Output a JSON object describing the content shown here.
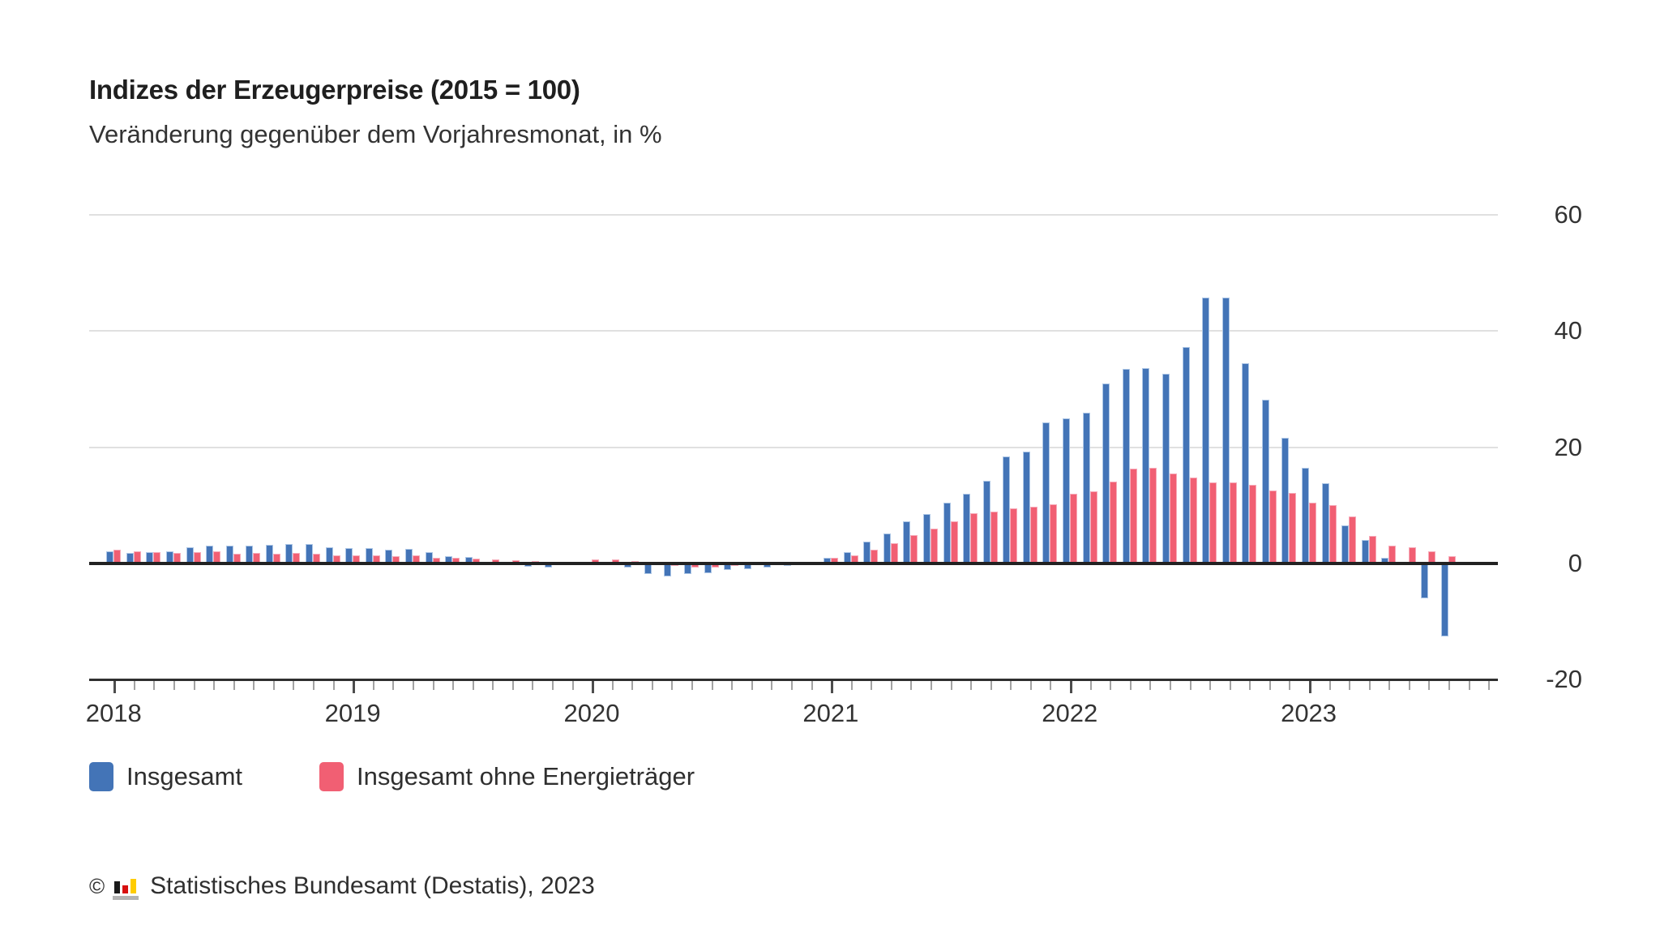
{
  "header": {
    "title": "Indizes der Erzeugerpreise (2015 = 100)",
    "subtitle": "Veränderung gegenüber dem Vorjahresmonat, in %"
  },
  "chart_data": {
    "type": "bar",
    "title": "Indizes der Erzeugerpreise (2015 = 100)",
    "subtitle": "Veränderung gegenüber dem Vorjahresmonat, in %",
    "unit": "%",
    "ylim": [
      -20,
      60
    ],
    "yticks": [
      60,
      40,
      20,
      0,
      -20
    ],
    "grid": "horizontal",
    "legend_position": "bottom",
    "x_start": "2018-01",
    "x_end": "2023-08",
    "categories": [
      "2018-01",
      "2018-02",
      "2018-03",
      "2018-04",
      "2018-05",
      "2018-06",
      "2018-07",
      "2018-08",
      "2018-09",
      "2018-10",
      "2018-11",
      "2018-12",
      "2019-01",
      "2019-02",
      "2019-03",
      "2019-04",
      "2019-05",
      "2019-06",
      "2019-07",
      "2019-08",
      "2019-09",
      "2019-10",
      "2019-11",
      "2019-12",
      "2020-01",
      "2020-02",
      "2020-03",
      "2020-04",
      "2020-05",
      "2020-06",
      "2020-07",
      "2020-08",
      "2020-09",
      "2020-10",
      "2020-11",
      "2020-12",
      "2021-01",
      "2021-02",
      "2021-03",
      "2021-04",
      "2021-05",
      "2021-06",
      "2021-07",
      "2021-08",
      "2021-09",
      "2021-10",
      "2021-11",
      "2021-12",
      "2022-01",
      "2022-02",
      "2022-03",
      "2022-04",
      "2022-05",
      "2022-06",
      "2022-07",
      "2022-08",
      "2022-09",
      "2022-10",
      "2022-11",
      "2022-12",
      "2023-01",
      "2023-02",
      "2023-03",
      "2023-04",
      "2023-05",
      "2023-06",
      "2023-07",
      "2023-08"
    ],
    "year_tick_labels": [
      "2018",
      "2019",
      "2020",
      "2021",
      "2022",
      "2023"
    ],
    "axis_extra_tick_months": 2,
    "series": [
      {
        "name": "Insgesamt",
        "color": "#4374b7",
        "values": [
          2.1,
          1.8,
          1.9,
          2.0,
          2.7,
          3.0,
          3.0,
          3.1,
          3.2,
          3.3,
          3.3,
          2.7,
          2.6,
          2.6,
          2.4,
          2.5,
          1.9,
          1.2,
          1.1,
          0.3,
          -0.1,
          -0.6,
          -0.7,
          -0.2,
          0.2,
          -0.1,
          -0.8,
          -1.9,
          -2.2,
          -1.8,
          -1.7,
          -1.2,
          -1.0,
          -0.7,
          -0.5,
          0.2,
          0.9,
          1.9,
          3.7,
          5.2,
          7.2,
          8.5,
          10.4,
          12.0,
          14.2,
          18.4,
          19.2,
          24.2,
          25.0,
          25.9,
          30.9,
          33.5,
          33.6,
          32.7,
          37.2,
          45.8,
          45.8,
          34.5,
          28.2,
          21.6,
          16.5,
          13.8,
          6.5,
          4.0,
          1.0,
          0.1,
          -6.0,
          -12.6
        ]
      },
      {
        "name": "Insgesamt ohne Energieträger",
        "color": "#f15f73",
        "values": [
          2.4,
          2.1,
          1.9,
          1.8,
          1.9,
          2.0,
          1.7,
          1.8,
          1.7,
          1.8,
          1.7,
          1.4,
          1.4,
          1.3,
          1.2,
          1.3,
          1.0,
          0.9,
          0.8,
          0.6,
          0.5,
          0.4,
          0.3,
          0.3,
          0.6,
          0.6,
          0.4,
          -0.2,
          -0.4,
          -0.8,
          -0.7,
          -0.5,
          -0.3,
          -0.2,
          -0.1,
          0.2,
          0.9,
          1.4,
          2.3,
          3.5,
          4.9,
          6.0,
          7.2,
          8.6,
          8.9,
          9.5,
          9.8,
          10.2,
          12.0,
          12.4,
          14.0,
          16.3,
          16.5,
          15.5,
          14.8,
          13.9,
          13.9,
          13.5,
          12.6,
          12.1,
          10.5,
          10.0,
          8.0,
          4.7,
          3.0,
          2.8,
          2.0,
          1.2
        ]
      }
    ]
  },
  "legend": {
    "items": [
      {
        "label": "Insgesamt",
        "color": "#4374b7"
      },
      {
        "label": "Insgesamt ohne Energieträger",
        "color": "#f15f73"
      }
    ]
  },
  "footer": {
    "copyright": "©",
    "source": "Statistisches Bundesamt (Destatis), 2023"
  }
}
